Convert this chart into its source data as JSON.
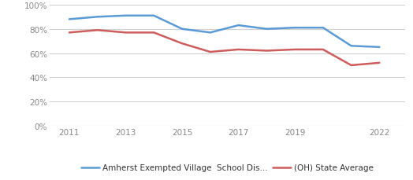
{
  "blue_x": [
    2011,
    2012,
    2013,
    2014,
    2015,
    2016,
    2017,
    2018,
    2019,
    2020,
    2021,
    2022
  ],
  "blue_y": [
    0.88,
    0.9,
    0.91,
    0.91,
    0.8,
    0.77,
    0.83,
    0.8,
    0.81,
    0.81,
    0.66,
    0.65
  ],
  "red_x": [
    2011,
    2012,
    2013,
    2014,
    2015,
    2016,
    2017,
    2018,
    2019,
    2020,
    2021,
    2022
  ],
  "red_y": [
    0.77,
    0.79,
    0.77,
    0.77,
    0.68,
    0.61,
    0.63,
    0.62,
    0.63,
    0.63,
    0.5,
    0.52
  ],
  "blue_color": "#5B9BD5",
  "red_color": "#CD5C5C",
  "blue_label": "Amherst Exempted Village  School Dis...",
  "red_label": "(OH) State Average",
  "ylim": [
    0,
    1.0
  ],
  "yticks": [
    0.0,
    0.2,
    0.4,
    0.6,
    0.8,
    1.0
  ],
  "ytick_labels": [
    "0%",
    "20%",
    "40%",
    "60%",
    "80%",
    "100%"
  ],
  "xticks": [
    2011,
    2013,
    2015,
    2017,
    2019,
    2022
  ],
  "background_color": "#ffffff",
  "grid_color": "#d0d0d0",
  "line_width": 1.8
}
